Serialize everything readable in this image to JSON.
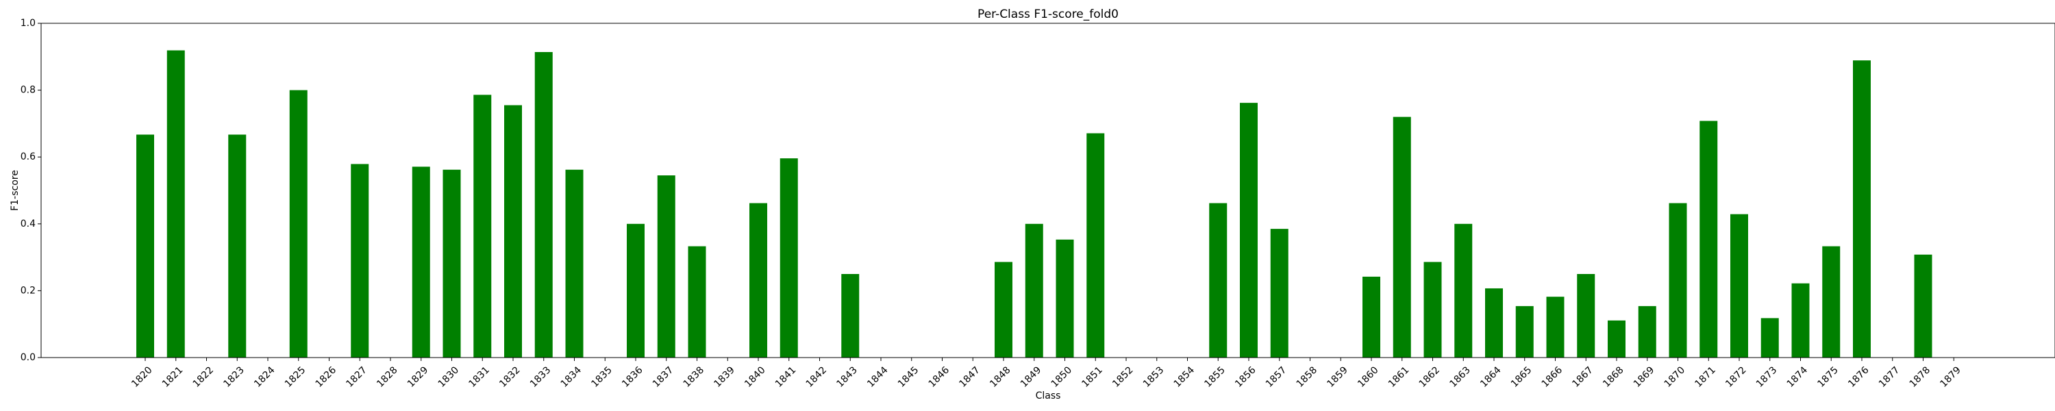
{
  "chart_data": {
    "type": "bar",
    "title": "Per-Class F1-score_fold0",
    "xlabel": "Class",
    "ylabel": "F1-score",
    "ylim": [
      0,
      1.0
    ],
    "yticks": [
      "0.0",
      "0.2",
      "0.4",
      "0.6",
      "0.8",
      "1.0"
    ],
    "grid": false,
    "bar_color": "#008000",
    "categories": [
      "1820",
      "1821",
      "1822",
      "1823",
      "1824",
      "1825",
      "1826",
      "1827",
      "1828",
      "1829",
      "1830",
      "1831",
      "1832",
      "1833",
      "1834",
      "1835",
      "1836",
      "1837",
      "1838",
      "1839",
      "1840",
      "1841",
      "1842",
      "1843",
      "1844",
      "1845",
      "1846",
      "1847",
      "1848",
      "1849",
      "1850",
      "1851",
      "1852",
      "1853",
      "1854",
      "1855",
      "1856",
      "1857",
      "1858",
      "1859",
      "1860",
      "1861",
      "1862",
      "1863",
      "1864",
      "1865",
      "1866",
      "1867",
      "1868",
      "1869",
      "1870",
      "1871",
      "1872",
      "1873",
      "1874",
      "1875",
      "1876",
      "1877",
      "1878",
      "1879"
    ],
    "values": [
      0.667,
      0.919,
      0,
      0.667,
      0,
      0.8,
      0,
      0.579,
      0,
      0.571,
      0.562,
      0.786,
      0.755,
      0.914,
      0.562,
      0,
      0.4,
      0.545,
      0.333,
      0,
      0.462,
      0.596,
      0,
      0.25,
      0,
      0,
      0,
      0,
      0.286,
      0.4,
      0.353,
      0.671,
      0,
      0,
      0,
      0.462,
      0.762,
      0.385,
      0,
      0,
      0.242,
      0.72,
      0.286,
      0.4,
      0.207,
      0.154,
      0.182,
      0.25,
      0.111,
      0.154,
      0.462,
      0.708,
      0.429,
      0.118,
      0.222,
      0.333,
      0.889,
      0,
      0.308,
      0
    ]
  }
}
